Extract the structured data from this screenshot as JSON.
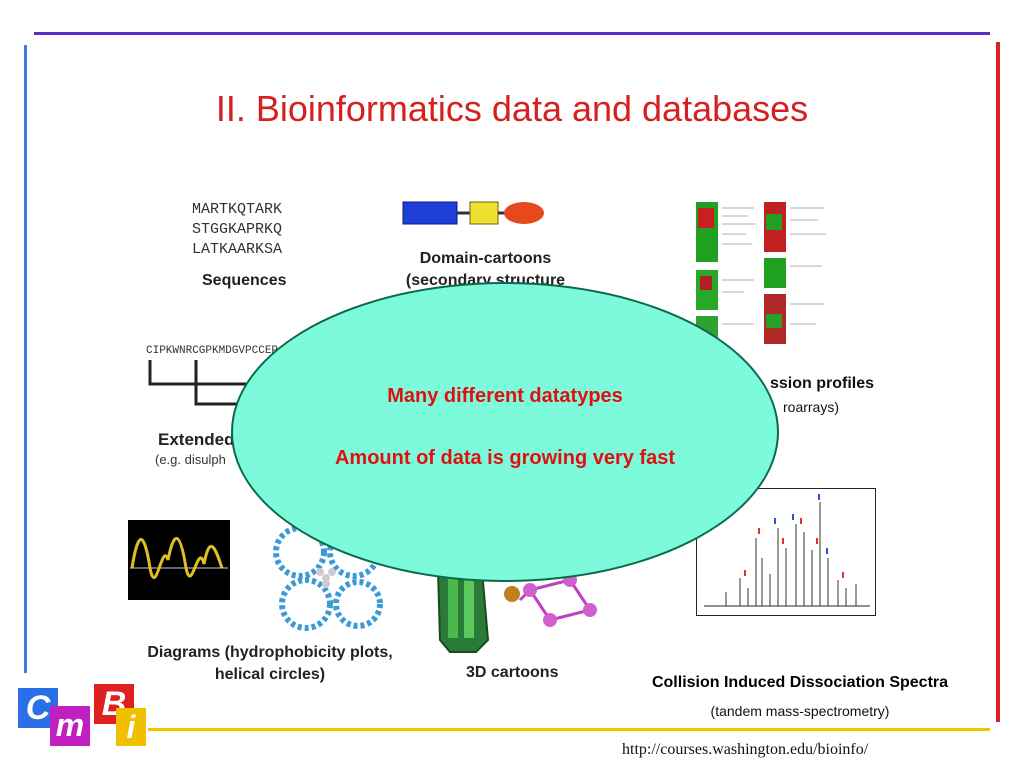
{
  "slide": {
    "title": "II. Bioinformatics data and databases",
    "sequences": {
      "lines": [
        "MARTKQTARK",
        "STGGKAPRKQ",
        "LATKAARKSA"
      ],
      "label": "Sequences"
    },
    "domain": {
      "label_line1": "Domain-cartoons",
      "label_line2": "(secondary structure"
    },
    "extended": {
      "sequence": "CIPKWNRCGPKMDGVPCCEP",
      "label": "Extended",
      "sub": "(e.g. disulph"
    },
    "expression": {
      "label": "ssion profiles",
      "sub": "roarrays)"
    },
    "diagrams": {
      "label_line1": "Diagrams (hydrophobicity plots,",
      "label_line2": "helical circles)"
    },
    "cartoons_3d": {
      "label": "3D cartoons"
    },
    "spectra": {
      "label": "Collision Induced Dissociation Spectra",
      "sub": "(tandem mass-spectrometry)"
    },
    "callout": {
      "line1": "Many different datatypes",
      "line2": "Amount of data is growing very fast"
    },
    "url": "http://courses.washington.edu/bioinfo/",
    "logo": {
      "letters": [
        "C",
        "m",
        "B",
        "i"
      ]
    }
  },
  "colors": {
    "title": "#d42020",
    "callout_fill": "#7dfadb",
    "callout_text": "#e01010",
    "top_line": "#5a2ec8",
    "left_line": "#3a7fe0",
    "right_line": "#e02020",
    "bottom_line": "#f2c400"
  }
}
